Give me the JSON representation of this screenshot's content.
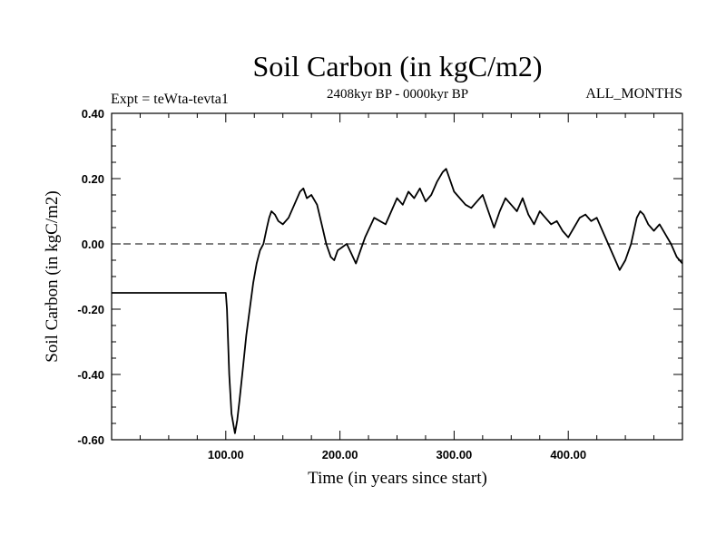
{
  "chart_data": {
    "type": "line",
    "title": "Soil Carbon (in kgC/m2)",
    "subtitle": "2408kyr BP - 0000kyr BP",
    "left_label": "Expt = teWta-tevta1",
    "right_label": "ALL_MONTHS",
    "xlabel": "Time (in years since start)",
    "ylabel": "Soil Carbon (in kgC/m2)",
    "xlim": [
      0,
      500
    ],
    "ylim": [
      -0.6,
      0.4
    ],
    "x_ticks": [
      100,
      200,
      300,
      400
    ],
    "x_tick_labels": [
      "100.00",
      "200.00",
      "300.00",
      "400.00"
    ],
    "y_ticks": [
      -0.6,
      -0.4,
      -0.2,
      0.0,
      0.2,
      0.4
    ],
    "y_tick_labels": [
      "-0.60",
      "-0.40",
      "-0.20",
      "0.00",
      "0.20",
      "0.40"
    ],
    "reference_line": 0.0,
    "series": [
      {
        "name": "Soil Carbon",
        "x": [
          0,
          99,
          100,
          101,
          103,
          105,
          107,
          108,
          110,
          112,
          115,
          118,
          121,
          124,
          127,
          130,
          133,
          136,
          138,
          140,
          143,
          146,
          150,
          155,
          160,
          165,
          168,
          171,
          175,
          180,
          184,
          188,
          192,
          195,
          198,
          202,
          206,
          210,
          214,
          218,
          222,
          226,
          230,
          235,
          240,
          245,
          250,
          255,
          260,
          265,
          270,
          275,
          280,
          285,
          290,
          293,
          296,
          300,
          305,
          310,
          315,
          320,
          325,
          330,
          335,
          340,
          345,
          350,
          355,
          360,
          365,
          370,
          375,
          380,
          385,
          390,
          395,
          400,
          405,
          410,
          415,
          420,
          425,
          430,
          435,
          440,
          445,
          450,
          455,
          460,
          463,
          466,
          470,
          475,
          480,
          485,
          490,
          495,
          500
        ],
        "y": [
          -0.15,
          -0.15,
          -0.15,
          -0.2,
          -0.4,
          -0.52,
          -0.56,
          -0.58,
          -0.54,
          -0.48,
          -0.38,
          -0.28,
          -0.2,
          -0.12,
          -0.06,
          -0.02,
          0.0,
          0.05,
          0.08,
          0.1,
          0.09,
          0.07,
          0.06,
          0.08,
          0.12,
          0.16,
          0.17,
          0.14,
          0.15,
          0.12,
          0.06,
          0.0,
          -0.04,
          -0.05,
          -0.02,
          -0.01,
          0.0,
          -0.03,
          -0.06,
          -0.02,
          0.02,
          0.05,
          0.08,
          0.07,
          0.06,
          0.1,
          0.14,
          0.12,
          0.16,
          0.14,
          0.17,
          0.13,
          0.15,
          0.19,
          0.22,
          0.23,
          0.2,
          0.16,
          0.14,
          0.12,
          0.11,
          0.13,
          0.15,
          0.1,
          0.05,
          0.1,
          0.14,
          0.12,
          0.1,
          0.14,
          0.09,
          0.06,
          0.1,
          0.08,
          0.06,
          0.07,
          0.04,
          0.02,
          0.05,
          0.08,
          0.09,
          0.07,
          0.08,
          0.04,
          0.0,
          -0.04,
          -0.08,
          -0.05,
          0.0,
          0.08,
          0.1,
          0.09,
          0.06,
          0.04,
          0.06,
          0.03,
          0.0,
          -0.04,
          -0.06
        ]
      }
    ]
  }
}
